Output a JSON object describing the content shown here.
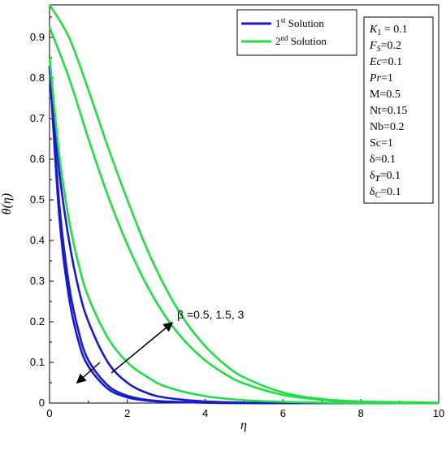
{
  "chart_data": {
    "type": "line",
    "xlabel": "η",
    "ylabel": "θ(η)",
    "xlim": [
      0,
      10
    ],
    "ylim": [
      0,
      0.98
    ],
    "x_ticks": [
      "0",
      "2",
      "4",
      "6",
      "8",
      "10"
    ],
    "y_ticks": [
      "0",
      "0.1",
      "0.2",
      "0.3",
      "0.4",
      "0.5",
      "0.6",
      "0.7",
      "0.8",
      "0.9"
    ],
    "grid": false,
    "legend_position": "top-right",
    "legend": [
      {
        "label": "1st Solution",
        "base": "1",
        "sup": "st",
        "rest": " Solution",
        "color": "#1a1acc"
      },
      {
        "label": "2nd Solution",
        "base": "2",
        "sup": "nd",
        "rest": " Solution",
        "color": "#22dd44"
      }
    ],
    "parameters": [
      "K1 = 0.1",
      "FS=0.2",
      "Ec=0.1",
      "Pr=1",
      "M=0.5",
      "Nt=0.15",
      "Nb=0.2",
      "Sc=1",
      "δ=0.1",
      "δT=0.1",
      "δC=0.1"
    ],
    "annotation": "β =0.5, 1.5, 3",
    "series": [
      {
        "solution": "1st Solution",
        "beta": 0.5,
        "color": "#1a1acc",
        "x": [
          0,
          0.25,
          0.5,
          0.75,
          1,
          1.5,
          2,
          2.5,
          3,
          4,
          5,
          6,
          8,
          10
        ],
        "y": [
          0.83,
          0.46,
          0.26,
          0.15,
          0.09,
          0.035,
          0.014,
          0.006,
          0.003,
          0.001,
          0,
          0,
          0,
          0
        ]
      },
      {
        "solution": "1st Solution",
        "beta": 1.5,
        "color": "#1a1acc",
        "x": [
          0,
          0.25,
          0.5,
          0.75,
          1,
          1.5,
          2,
          2.5,
          3,
          4,
          5,
          6,
          8,
          10
        ],
        "y": [
          0.83,
          0.49,
          0.29,
          0.175,
          0.105,
          0.043,
          0.018,
          0.008,
          0.004,
          0.001,
          0,
          0,
          0,
          0
        ]
      },
      {
        "solution": "1st Solution",
        "beta": 3,
        "color": "#1a1acc",
        "x": [
          0,
          0.25,
          0.5,
          0.75,
          1,
          1.5,
          2,
          2.5,
          3,
          4,
          5,
          6,
          8,
          10
        ],
        "y": [
          0.83,
          0.57,
          0.4,
          0.28,
          0.2,
          0.1,
          0.05,
          0.025,
          0.013,
          0.004,
          0.001,
          0,
          0,
          0
        ]
      },
      {
        "solution": "2nd Solution",
        "beta": 0.5,
        "color": "#22dd44",
        "x": [
          0,
          0.25,
          0.5,
          0.75,
          1,
          1.5,
          2,
          2.5,
          3,
          4,
          5,
          6,
          7,
          8,
          10
        ],
        "y": [
          0.85,
          0.61,
          0.45,
          0.34,
          0.26,
          0.16,
          0.1,
          0.065,
          0.04,
          0.017,
          0.007,
          0.003,
          0.001,
          0,
          0
        ]
      },
      {
        "solution": "2nd Solution",
        "beta": 1.5,
        "color": "#22dd44",
        "x": [
          0,
          0.5,
          1,
          1.5,
          2,
          2.5,
          3,
          3.5,
          4,
          4.5,
          5,
          6,
          7,
          8,
          10
        ],
        "y": [
          0.925,
          0.8,
          0.65,
          0.51,
          0.39,
          0.29,
          0.21,
          0.15,
          0.105,
          0.072,
          0.048,
          0.02,
          0.008,
          0.002,
          0
        ]
      },
      {
        "solution": "2nd Solution",
        "beta": 3,
        "color": "#22dd44",
        "x": [
          0,
          0.5,
          1,
          1.5,
          2,
          2.5,
          3,
          3.5,
          4,
          4.5,
          5,
          6,
          7,
          8,
          10
        ],
        "y": [
          0.98,
          0.9,
          0.77,
          0.63,
          0.5,
          0.38,
          0.28,
          0.2,
          0.14,
          0.095,
          0.063,
          0.026,
          0.01,
          0.004,
          0.001
        ]
      }
    ]
  }
}
